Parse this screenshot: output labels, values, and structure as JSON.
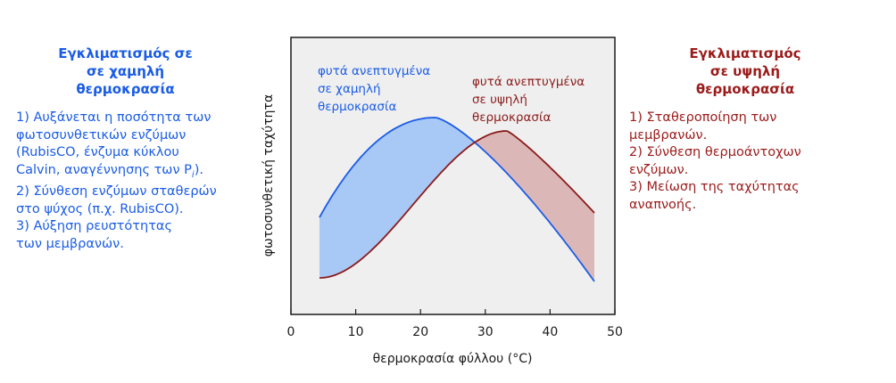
{
  "left": {
    "title": [
      "Εγκλιματισμός σε",
      "σε χαμηλή",
      "θερμοκρασία"
    ],
    "items": [
      "1) Αυξάνεται η ποσότητα των",
      "φωτοσυνθετικών ενζύμων",
      "(RubisCO, ένζυμα κύκλου",
      "Calvin, αναγέννησης των P",
      "2) Σύνθεση ενζύμων σταθερών",
      "στο ψύχος (π.χ. RubisCO).",
      "3) Αύξηση ρευστότητας",
      "των μεμβρανών."
    ],
    "pi_subscript": "i",
    "pi_tail": ").",
    "color": "#1a5ce6"
  },
  "right": {
    "title": [
      "Εγκλιματισμός",
      "σε υψηλή",
      "θερμοκρασία"
    ],
    "items": [
      "1) Σταθεροποίηση των",
      "μεμβρανών.",
      "2) Σύνθεση θερμοάντοχων",
      "ενζύμων.",
      "3) Μείωση της ταχύτητας",
      "αναπνοής."
    ],
    "color": "#9b1b1b"
  },
  "chart": {
    "xlabel": "θερμοκρασία φύλλου (°C)",
    "ylabel": "φωτοσυνθετική ταχύτητα",
    "xticks": [
      "0",
      "10",
      "20",
      "30",
      "40",
      "50"
    ],
    "xlim": [
      0,
      50
    ],
    "background": "#efefef",
    "low_label": [
      "φυτά ανεπτυγμένα",
      "σε χαμηλή",
      "θερμοκρασία"
    ],
    "high_label": [
      "φυτά ανεπτυγμένα",
      "σε υψηλή",
      "θερμοκρασία"
    ],
    "low_color": "#1a5ce6",
    "low_fill": "#a8c8f5",
    "high_color": "#8b1a1a",
    "high_fill": "#dcb7b7"
  }
}
